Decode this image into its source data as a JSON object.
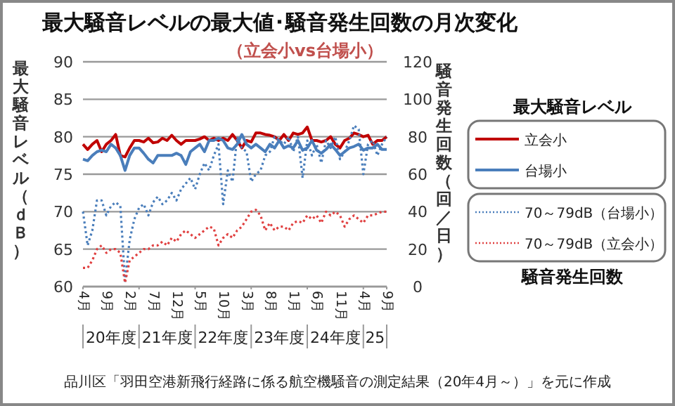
{
  "chart_data": {
    "type": "line",
    "title": "最大騒音レベルの最大値･騒音発生回数の月次変化",
    "subtitle": "（立会小vs台場小）",
    "ylabel": "最大騒音レベル（ｄＢ）",
    "y2label": "騒音発生回数（回／日）",
    "legend_title": "最大騒音レベル",
    "categories": [
      "4月",
      null,
      null,
      null,
      null,
      "9月",
      null,
      null,
      null,
      null,
      "2月",
      null,
      null,
      null,
      null,
      "7月",
      null,
      null,
      null,
      null,
      "12月",
      null,
      null,
      null,
      null,
      "5月",
      null,
      null,
      null,
      null,
      "10月",
      null,
      null,
      null,
      null,
      "3月",
      null,
      null,
      null,
      null,
      "8月",
      null,
      null,
      null,
      null,
      "1月",
      null,
      null,
      null,
      null,
      "6月",
      null,
      null,
      null,
      null,
      "11月",
      null,
      null,
      null,
      null,
      "4月",
      null,
      null,
      null,
      null,
      "9月"
    ],
    "series": [
      {
        "name": "立会小",
        "color": "#c00000",
        "line_style": "solid",
        "values": [
          79,
          78.3,
          79,
          79.5,
          78,
          79,
          79.5,
          80.3,
          77.5,
          77.3,
          78.5,
          79.5,
          79.5,
          79.3,
          79.8,
          79.2,
          79.3,
          79.8,
          79.5,
          80.2,
          79.5,
          79,
          79.5,
          79.5,
          79.5,
          79.7,
          80,
          79.5,
          79.8,
          79.5,
          79.8,
          79.5,
          80.3,
          79.5,
          78.5,
          79.5,
          79.3,
          80.5,
          80.5,
          80.3,
          80.2,
          80,
          79.5,
          80.3,
          79.5,
          80.5,
          80.3,
          80.5,
          81.3,
          79.5,
          79.5,
          79.3,
          79.5,
          80,
          79,
          78.5,
          79.5,
          79.8,
          80.5,
          80.3,
          80,
          80.2,
          79,
          79.5,
          79.5,
          80
        ]
      },
      {
        "name": "台場小",
        "color": "#4a7ebb",
        "line_style": "solid",
        "values": [
          77,
          76.8,
          77.5,
          78,
          78.2,
          78,
          79,
          78.5,
          77.5,
          75.5,
          77.5,
          78.5,
          78.5,
          77.8,
          77,
          76.5,
          77.5,
          77.5,
          77.5,
          77.5,
          77.8,
          77.5,
          76.3,
          78,
          78.5,
          79,
          78,
          79.5,
          79.5,
          79.8,
          79.5,
          78.5,
          78.3,
          79,
          80.3,
          79,
          78.5,
          79,
          78.5,
          78,
          79,
          78.5,
          79.5,
          78.5,
          78.8,
          78.5,
          79.5,
          78.2,
          78.5,
          79.5,
          78.2,
          77.8,
          78.3,
          79,
          78.3,
          77.5,
          78,
          78.5,
          78.7,
          79,
          78.2,
          78.5,
          78.5,
          79,
          78.3,
          78.3
        ]
      },
      {
        "name": "70～79dB（台場小）",
        "color": "#4a7ebb",
        "line_style": "dotted",
        "axis": "y2",
        "values": [
          40,
          22,
          30,
          46,
          46,
          38,
          43,
          45,
          43,
          3,
          25,
          36,
          42,
          44,
          38,
          45,
          48,
          44,
          46,
          50,
          46,
          52,
          55,
          58,
          52,
          60,
          66,
          62,
          70,
          76,
          44,
          62,
          56,
          80,
          74,
          72,
          56,
          60,
          62,
          70,
          72,
          80,
          78,
          76,
          80,
          72,
          80,
          58,
          78,
          70,
          76,
          66,
          78,
          74,
          80,
          68,
          72,
          78,
          86,
          84,
          60,
          76,
          78,
          70,
          76,
          80
        ]
      },
      {
        "name": "70～79dB（立会小）",
        "color": "#e04040",
        "line_style": "dotted",
        "axis": "y2",
        "values": [
          10,
          10,
          14,
          20,
          22,
          18,
          20,
          20,
          18,
          2,
          14,
          16,
          18,
          20,
          20,
          22,
          22,
          24,
          22,
          26,
          24,
          28,
          30,
          28,
          26,
          28,
          30,
          32,
          31,
          22,
          26,
          28,
          26,
          30,
          32,
          36,
          40,
          41,
          38,
          30,
          34,
          30,
          32,
          32,
          30,
          34,
          35,
          34,
          38,
          36,
          38,
          34,
          40,
          38,
          40,
          38,
          32,
          36,
          38,
          36,
          34,
          38,
          38,
          39,
          40,
          40
        ]
      }
    ],
    "ylim": [
      60,
      90
    ],
    "yticks": [
      60,
      65,
      70,
      75,
      80,
      85,
      90
    ],
    "y2lim": [
      0,
      120
    ],
    "y2ticks": [
      0,
      20,
      40,
      60,
      80,
      100,
      120
    ],
    "grid": "y",
    "legend": "right",
    "marker": "none",
    "annotations": [
      "20年度",
      "21年度",
      "22年度",
      "23年度",
      "24年度",
      "25",
      "騒音発生回数",
      "品川区「羽田空港新飛行経路に係る航空機騒音の測定結果（20年4月～）」を元に作成"
    ]
  }
}
